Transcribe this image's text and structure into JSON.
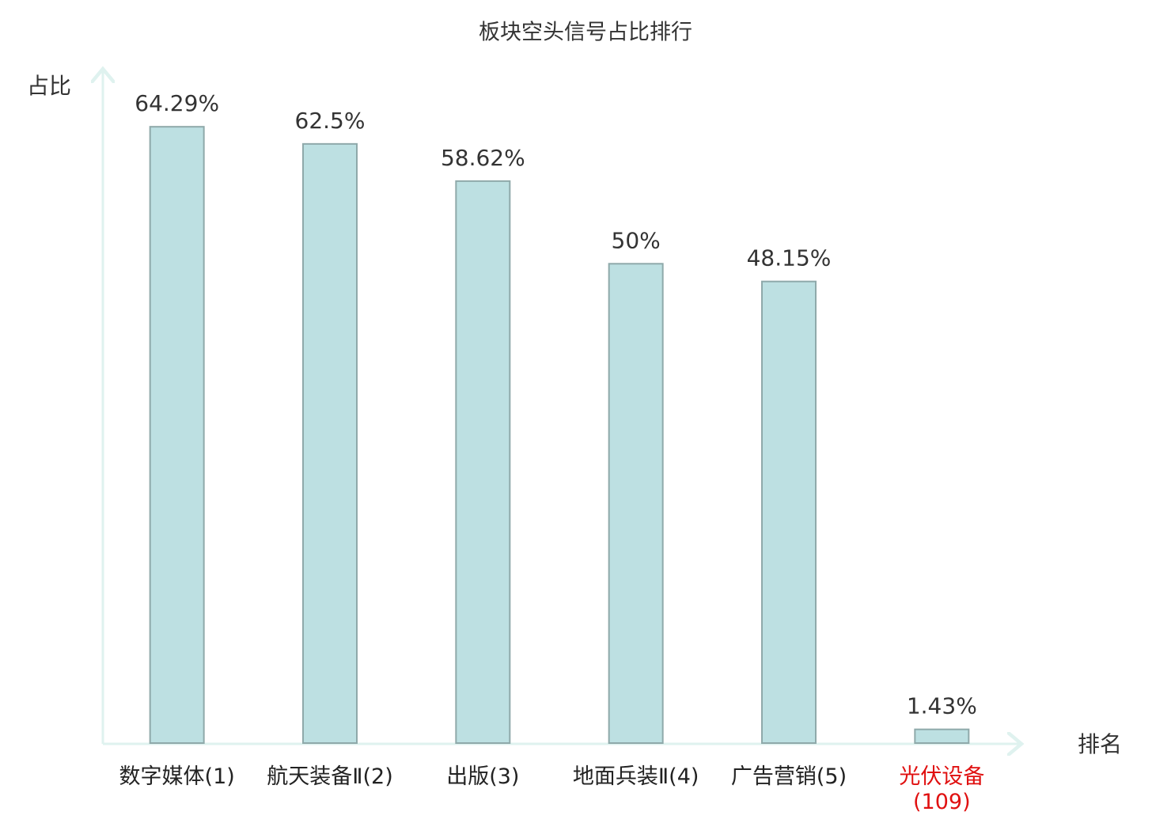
{
  "chart_data": {
    "type": "bar",
    "title": "板块空头信号占比排行",
    "y_label": "占比",
    "x_label": "排名",
    "categories": [
      "数字媒体(1)",
      "航天装备Ⅱ(2)",
      "出版(3)",
      "地面兵装Ⅱ(4)",
      "广告营销(5)",
      "光伏设备(109)"
    ],
    "values": [
      64.29,
      62.5,
      58.62,
      50,
      48.15,
      1.43
    ],
    "value_labels": [
      "64.29%",
      "62.5%",
      "58.62%",
      "50%",
      "48.15%",
      "1.43%"
    ],
    "color": "#bde0e2",
    "edge_color": "#8fa9aa",
    "label_colors": [
      "#222222",
      "#222222",
      "#222222",
      "#222222",
      "#222222",
      "#e01010"
    ],
    "ylim": [
      0,
      70
    ]
  }
}
